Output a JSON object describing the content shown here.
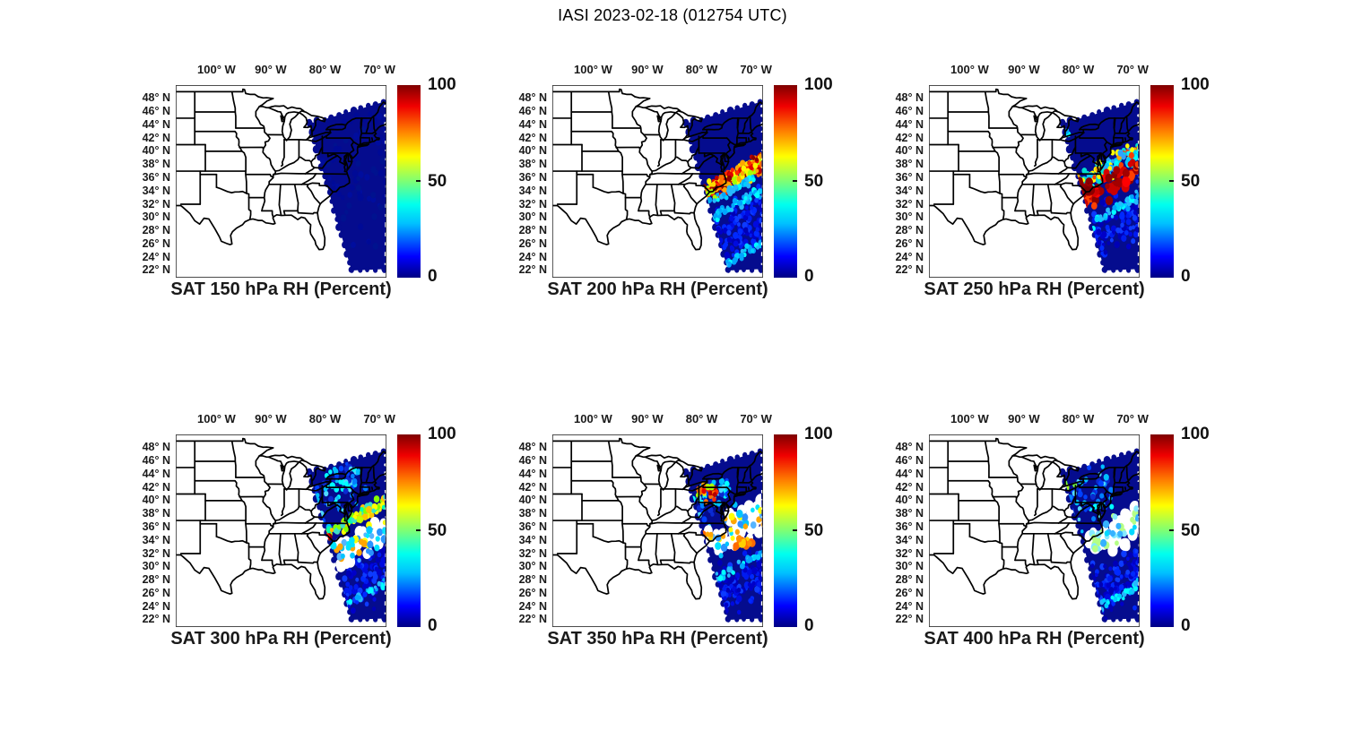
{
  "figure": {
    "title": "IASI 2023-02-18 (012754 UTC)",
    "background": "#ffffff"
  },
  "axes": {
    "x_tick_labels": [
      "100° W",
      "90° W",
      "80° W",
      "70° W"
    ],
    "y_tick_labels": [
      "48° N",
      "46° N",
      "44° N",
      "42° N",
      "40° N",
      "38° N",
      "36° N",
      "34° N",
      "32° N",
      "30° N",
      "28° N",
      "26° N",
      "24° N",
      "22° N"
    ]
  },
  "colorbar": {
    "tick_labels": [
      "100",
      "50",
      "0"
    ],
    "min": 0,
    "max": 100,
    "colormap": "jet",
    "gradient_stops": [
      [
        "#000084",
        0
      ],
      [
        "#0000ff",
        11
      ],
      [
        "#00c0ff",
        28
      ],
      [
        "#00ffee",
        38
      ],
      [
        "#7dff75",
        50
      ],
      [
        "#ffff00",
        63
      ],
      [
        "#ff8000",
        76
      ],
      [
        "#f00000",
        89
      ],
      [
        "#7f0000",
        100
      ]
    ]
  },
  "chart_data": {
    "type": "scatter",
    "subtype": "geographic satellite-swath small multiples, 2 rows x 3 columns",
    "instrument": "IASI",
    "datetime_utc": "2023-02-18 012754 UTC",
    "variable": "Relative Humidity",
    "units": "Percent",
    "value_range": [
      0,
      100
    ],
    "colormap": "jet",
    "map_extent": {
      "lon_w": [
        107.5,
        68.7
      ],
      "lat_n": [
        20.9,
        50.0
      ]
    },
    "x_tick_lons_w": [
      100,
      90,
      80,
      70
    ],
    "y_tick_lats_n": [
      48,
      46,
      44,
      42,
      40,
      38,
      36,
      34,
      32,
      30,
      28,
      26,
      24,
      22
    ],
    "basemap": "US state boundaries, black lines on white",
    "swath": {
      "color": "#050c8e",
      "note": "Polar-orbit swath over the eastern US / western Atlantic; white = no data west of swath and in mid-swath gaps",
      "polygon_rel": [
        [
          0.634,
          0.2
        ],
        [
          0.987,
          0.088
        ],
        [
          0.995,
          0.5
        ],
        [
          0.99,
          0.955
        ],
        [
          0.834,
          0.963
        ]
      ]
    },
    "palettes": {
      "navy2": [
        "#000a96",
        "#000d9e",
        "#00128f"
      ],
      "lowblue": [
        "#0000b6",
        "#0000c8",
        "#000ae0",
        "#001bf0",
        "#0029ff",
        "#0d3bff"
      ],
      "cyans": [
        "#00cfff",
        "#00ffff",
        "#25b9ff",
        "#00a5ff"
      ],
      "warm": [
        "#8b0000",
        "#b70000",
        "#e10000",
        "#ff2a00",
        "#ff6f00",
        "#ffa700",
        "#ffd800",
        "#fff500",
        "#a8ff00"
      ],
      "cyanwarm": [
        "#00ffff",
        "#00c8ff",
        "#ffff00",
        "#ffa500",
        "#ff3c00",
        "#2ea2ff",
        "#00e0d0"
      ],
      "redheavy": [
        "#a30000",
        "#c90000",
        "#ff0000",
        "#d60000",
        "#8b0000",
        "#ff4000"
      ],
      "darkred": [
        "#8b0000",
        "#a00000",
        "#780000"
      ],
      "speckle": [
        "#0040ff",
        "#0080ff",
        "#00c0ff",
        "#00ffff",
        "#0a2ad2",
        "#4fd8ff"
      ],
      "greenyellow": [
        "#86ff00",
        "#c4ff00",
        "#ffff00",
        "#ffc400",
        "#3ce0c8",
        "#00ffae"
      ],
      "white": [
        "#ffffff"
      ],
      "gapmix": [
        "#2a93ff",
        "#00c4ff",
        "#ffff00",
        "#56b4ff",
        "#00e4ff",
        "#ffa500"
      ],
      "orangered": [
        "#ff4500",
        "#ff0000",
        "#8b0000",
        "#ff8c00"
      ],
      "orangeheavy": [
        "#ff8c00",
        "#ff6a00",
        "#ffa500",
        "#ffd000"
      ],
      "greens": [
        "#72ff42",
        "#a4ff1e",
        "#00ff96"
      ],
      "cyangap": [
        "#00d9ff",
        "#36b2ff",
        "#85eaff",
        "#b5ff85"
      ]
    },
    "panels": [
      {
        "id": "sat-150",
        "level_hpa": 150,
        "title": "SAT 150 hPa RH (Percent)",
        "summary": "RH near 0-5% over the entire swath; uniform dark navy blue.",
        "clusters": [
          {
            "x": 0.82,
            "y": 0.5,
            "len": 0.6,
            "wid": 0.55,
            "n": 140,
            "r": 4.5,
            "pal": "navy2",
            "ang": -25
          }
        ]
      },
      {
        "id": "sat-200",
        "level_hpa": 200,
        "title": "SAT 200 hPa RH (Percent)",
        "summary": "RH 0-5% north of ~40N; intense red/orange/yellow band (RH 70-100%) sloping NE from the NC/VA coast offshore ~33-38N; cyan/blue streaks (RH 15-45%) south of the band.",
        "clusters": [
          {
            "x": 0.88,
            "y": 0.74,
            "len": 0.44,
            "wid": 0.26,
            "n": 260,
            "r": 4.2,
            "pal": "lowblue",
            "ang": -25
          },
          {
            "x": 0.84,
            "y": 0.64,
            "len": 0.4,
            "wid": 0.045,
            "n": 70,
            "r": 3.8,
            "pal": "cyans",
            "ang": -25
          },
          {
            "x": 0.92,
            "y": 0.87,
            "len": 0.28,
            "wid": 0.04,
            "n": 40,
            "r": 3.8,
            "pal": "cyans",
            "ang": -25
          },
          {
            "x": 0.8,
            "y": 0.52,
            "len": 0.46,
            "wid": 0.085,
            "n": 320,
            "r": 4.3,
            "pal": "warm",
            "ang": -25
          },
          {
            "x": 0.78,
            "y": 0.59,
            "len": 0.4,
            "wid": 0.035,
            "n": 70,
            "r": 3.8,
            "pal": "cyans",
            "ang": -25
          }
        ]
      },
      {
        "id": "sat-250",
        "level_hpa": 250,
        "title": "SAT 250 hPa RH (Percent)",
        "summary": "Dark blue north; cluster of large red blobs (RH 80-100%) mixed with cyan/yellow (RH 30-60%) off the mid-Atlantic coast ~33-38N; blue with cyan streaks (RH 10-40%) south; small cyan patch near Lake Ontario.",
        "clusters": [
          {
            "x": 0.88,
            "y": 0.74,
            "len": 0.44,
            "wid": 0.26,
            "n": 230,
            "r": 4.2,
            "pal": "lowblue",
            "ang": -25
          },
          {
            "x": 0.86,
            "y": 0.66,
            "len": 0.4,
            "wid": 0.05,
            "n": 60,
            "r": 3.8,
            "pal": "cyans",
            "ang": -25
          },
          {
            "x": 0.83,
            "y": 0.44,
            "len": 0.42,
            "wid": 0.09,
            "n": 150,
            "r": 4.3,
            "pal": "cyanwarm",
            "ang": -25
          },
          {
            "x": 0.85,
            "y": 0.52,
            "len": 0.34,
            "wid": 0.11,
            "n": 60,
            "r": 6.2,
            "pal": "redheavy",
            "ang": -25
          },
          {
            "x": 0.735,
            "y": 0.53,
            "len": 0.07,
            "wid": 0.07,
            "n": 12,
            "r": 6.2,
            "pal": "darkred",
            "ang": 0
          },
          {
            "x": 0.645,
            "y": 0.25,
            "len": 0.05,
            "wid": 0.045,
            "n": 10,
            "r": 4.6,
            "pal": "cyans",
            "ang": 0
          }
        ]
      },
      {
        "id": "sat-300",
        "level_hpa": 300,
        "title": "SAT 300 hPa RH (Percent)",
        "summary": "Blue with cyan speckles (RH 10-40%) over NY/New England; green-yellow arc (RH 40-70%) offshore ~35-38N; a few orange-red spots (RH 70-95%) near the Carolina coast; white data-gap region offshore ~32-36N with scattered blue/cyan dots; blue south.",
        "clusters": [
          {
            "x": 0.88,
            "y": 0.76,
            "len": 0.42,
            "wid": 0.24,
            "n": 210,
            "r": 4.2,
            "pal": "lowblue",
            "ang": -25
          },
          {
            "x": 0.9,
            "y": 0.83,
            "len": 0.32,
            "wid": 0.04,
            "n": 40,
            "r": 3.8,
            "pal": "cyans",
            "ang": -25
          },
          {
            "x": 0.73,
            "y": 0.31,
            "len": 0.33,
            "wid": 0.25,
            "n": 95,
            "r": 4.0,
            "pal": "speckle",
            "ang": -25
          },
          {
            "x": 0.85,
            "y": 0.44,
            "len": 0.38,
            "wid": 0.06,
            "n": 90,
            "r": 4.4,
            "pal": "greenyellow",
            "ang": -25
          },
          {
            "x": 0.89,
            "y": 0.56,
            "len": 0.28,
            "wid": 0.13,
            "n": 55,
            "r": 8,
            "pal": "white",
            "ang": -25
          },
          {
            "x": 0.89,
            "y": 0.56,
            "len": 0.28,
            "wid": 0.12,
            "n": 42,
            "r": 5,
            "pal": "gapmix",
            "ang": -25
          },
          {
            "x": 0.7,
            "y": 0.525,
            "len": 0.07,
            "wid": 0.06,
            "n": 10,
            "r": 5,
            "pal": "orangered",
            "ang": 0
          }
        ]
      },
      {
        "id": "sat-350",
        "level_hpa": 350,
        "title": "SAT 350 hPa RH (Percent)",
        "summary": "Dark blue northeast; yellow-orange cluster (RH 55-85%) over PA/NY; white data-gap offshore ~33-36N with scattered blue-cyan dots; orange patches (RH 60-80%) offshore ~33-35N; blue/cyan streaks south.",
        "clusters": [
          {
            "x": 0.89,
            "y": 0.77,
            "len": 0.4,
            "wid": 0.22,
            "n": 210,
            "r": 4.2,
            "pal": "lowblue",
            "ang": -25
          },
          {
            "x": 0.85,
            "y": 0.7,
            "len": 0.34,
            "wid": 0.04,
            "n": 45,
            "r": 3.8,
            "pal": "cyans",
            "ang": -25
          },
          {
            "x": 0.72,
            "y": 0.34,
            "len": 0.26,
            "wid": 0.2,
            "n": 60,
            "r": 4.0,
            "pal": "speckle",
            "ang": -25
          },
          {
            "x": 0.735,
            "y": 0.295,
            "len": 0.09,
            "wid": 0.085,
            "n": 26,
            "r": 4.6,
            "pal": "warm",
            "ang": 0
          },
          {
            "x": 0.9,
            "y": 0.47,
            "len": 0.32,
            "wid": 0.15,
            "n": 70,
            "r": 8,
            "pal": "white",
            "ang": -25
          },
          {
            "x": 0.9,
            "y": 0.47,
            "len": 0.3,
            "wid": 0.13,
            "n": 40,
            "r": 5,
            "pal": "gapmix",
            "ang": -25
          },
          {
            "x": 0.91,
            "y": 0.565,
            "len": 0.09,
            "wid": 0.06,
            "n": 20,
            "r": 5.4,
            "pal": "orangeheavy",
            "ang": 0
          },
          {
            "x": 0.73,
            "y": 0.525,
            "len": 0.05,
            "wid": 0.04,
            "n": 6,
            "r": 4.6,
            "pal": "orangeheavy",
            "ang": 0
          }
        ]
      },
      {
        "id": "sat-400",
        "level_hpa": 400,
        "title": "SAT 400 hPa RH (Percent)",
        "summary": "Mostly dark blue with cyan speckles (RH 10-35%); a few green dots near Lake Ontario; white data-gap offshore ~33-36N with scattered cyan dots; blue with cyan speckles south.",
        "clusters": [
          {
            "x": 0.89,
            "y": 0.77,
            "len": 0.4,
            "wid": 0.22,
            "n": 210,
            "r": 4.2,
            "pal": "lowblue",
            "ang": -25
          },
          {
            "x": 0.9,
            "y": 0.84,
            "len": 0.28,
            "wid": 0.04,
            "n": 40,
            "r": 3.8,
            "pal": "cyans",
            "ang": -25
          },
          {
            "x": 0.72,
            "y": 0.34,
            "len": 0.3,
            "wid": 0.24,
            "n": 80,
            "r": 4.0,
            "pal": "speckle",
            "ang": -25
          },
          {
            "x": 0.665,
            "y": 0.26,
            "len": 0.06,
            "wid": 0.05,
            "n": 8,
            "r": 4.3,
            "pal": "greens",
            "ang": 0
          },
          {
            "x": 0.9,
            "y": 0.5,
            "len": 0.3,
            "wid": 0.15,
            "n": 65,
            "r": 8,
            "pal": "white",
            "ang": -25
          },
          {
            "x": 0.9,
            "y": 0.5,
            "len": 0.28,
            "wid": 0.13,
            "n": 40,
            "r": 5,
            "pal": "cyangap",
            "ang": -25
          }
        ]
      }
    ]
  }
}
